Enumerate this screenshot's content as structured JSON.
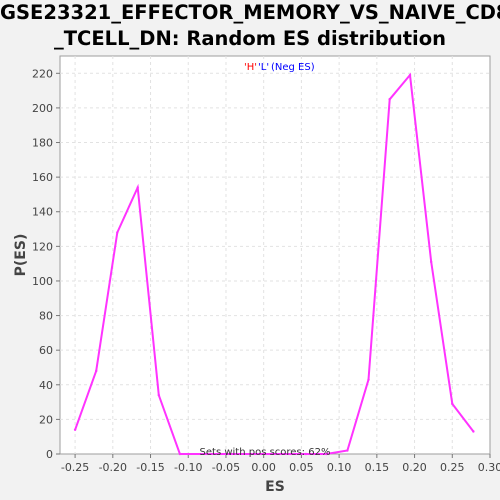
{
  "chart_data": {
    "type": "line",
    "title_lines": [
      "GSE23321_EFFECTOR_MEMORY_VS_NAIVE_CD8",
      "_TCELL_DN: Random ES distribution"
    ],
    "xlabel": "ES",
    "ylabel": "P(ES)",
    "xlim": [
      -0.27,
      0.3
    ],
    "ylim": [
      0,
      230
    ],
    "xticks": [
      -0.25,
      -0.2,
      -0.15,
      -0.1,
      -0.05,
      0.0,
      0.05,
      0.1,
      0.15,
      0.2,
      0.25,
      0.3
    ],
    "xtick_labels": [
      "-0.25",
      "-0.20",
      "-0.15",
      "-0.10",
      "-0.05",
      "0.00",
      "0.05",
      "0.10",
      "0.15",
      "0.20",
      "0.25",
      "0.30"
    ],
    "yticks": [
      0,
      20,
      40,
      60,
      80,
      100,
      120,
      140,
      160,
      180,
      200,
      220
    ],
    "grid": true,
    "legend": {
      "position": "top-center",
      "entries": [
        {
          "text": "'H'",
          "color": "#ff0000"
        },
        {
          "text": "'L'",
          "color": "#0000ff"
        },
        {
          "text": "(Neg ES)",
          "color": "#0000ff"
        }
      ]
    },
    "annotation": "Sets with pos scores: 62%",
    "series": [
      {
        "color": "#ff33ff",
        "x": [
          -0.25,
          -0.222,
          -0.194,
          -0.167,
          -0.139,
          -0.111,
          0.056,
          0.083,
          0.111,
          0.139,
          0.167,
          0.194,
          0.222,
          0.25,
          0.278
        ],
        "y": [
          14,
          48,
          128,
          154,
          34,
          0,
          0,
          0,
          2,
          43,
          205,
          219,
          111,
          29,
          13
        ]
      }
    ]
  }
}
